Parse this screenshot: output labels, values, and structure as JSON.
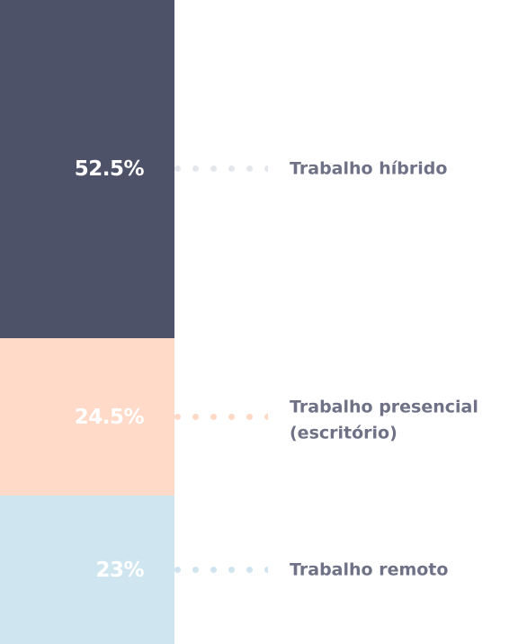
{
  "chart_data": {
    "type": "bar",
    "subtype": "stacked-100-percent",
    "categories": [
      "Trabalho híbrido",
      "Trabalho presencial (escritório)",
      "Trabalho remoto"
    ],
    "values": [
      52.5,
      24.5,
      23
    ],
    "value_labels": [
      "52.5%",
      "24.5%",
      "23%"
    ],
    "colors": [
      "#4d5269",
      "#ffdac8",
      "#cfe5ef"
    ],
    "title": "",
    "xlabel": "",
    "ylabel": "",
    "ylim": [
      0,
      100
    ],
    "grid": false,
    "legend": "labels beside segments, right"
  }
}
